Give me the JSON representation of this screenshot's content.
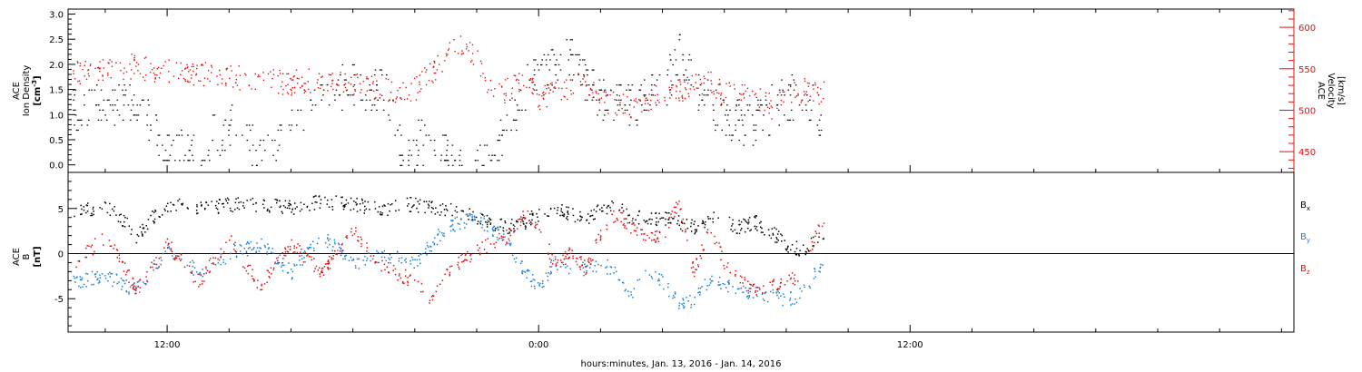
{
  "colors": {
    "black": "#000000",
    "red": "#e01010",
    "blue": "#1a7fd4"
  },
  "xaxis": {
    "label": "hours:minutes, Jan. 13, 2016 - Jan. 14, 2016",
    "range_hours": [
      -15.2,
      24.4
    ],
    "tick_labels": [
      {
        "hour": -12,
        "label": "12:00"
      },
      {
        "hour": 0,
        "label": "0:00"
      },
      {
        "hour": 12,
        "label": "12:00"
      }
    ],
    "minor_tick_hours": [
      -14,
      -10,
      -8,
      -6,
      -4,
      -2,
      2,
      4,
      6,
      8,
      10,
      14,
      16,
      18,
      20,
      22,
      24
    ],
    "data_end_hour": 9.2
  },
  "chart_data": [
    {
      "type": "scatter",
      "panel": "ion-density-velocity",
      "left_axis": {
        "label_lines": [
          "ACE",
          "Ion Density",
          "[cm"
        ],
        "unit_suffix": "-3",
        "unit_close": "]",
        "ylim": [
          -0.15,
          3.1
        ],
        "ticks": [
          "0.0",
          "0.5",
          "1.0",
          "1.5",
          "2.0",
          "2.5",
          "3.0"
        ],
        "color": "#000000"
      },
      "right_axis": {
        "label_lines": [
          "ACE",
          "Velocity",
          "[km/s]"
        ],
        "ylim": [
          425,
          622
        ],
        "ticks": [
          "450",
          "500",
          "550",
          "600"
        ],
        "color": "#e01010"
      },
      "series": [
        {
          "color": "#000000",
          "points": [
            [
              -15.0,
              1.1
            ],
            [
              -14.0,
              1.2
            ],
            [
              -13.0,
              1.4
            ],
            [
              -12.5,
              0.8
            ],
            [
              -12.0,
              0.2
            ],
            [
              -11.0,
              0.3
            ],
            [
              -10.0,
              0.8
            ],
            [
              -9.5,
              0.5
            ],
            [
              -8.9,
              0.15
            ],
            [
              -8.0,
              1.0
            ],
            [
              -7.0,
              1.4
            ],
            [
              -6.0,
              1.6
            ],
            [
              -5.0,
              1.5
            ],
            [
              -4.4,
              0.2
            ],
            [
              -3.5,
              0.6
            ],
            [
              -3.0,
              0.2
            ],
            [
              -2.0,
              0.1
            ],
            [
              -1.5,
              0.1
            ],
            [
              -0.5,
              1.5
            ],
            [
              0.0,
              1.8
            ],
            [
              0.5,
              2.0
            ],
            [
              1.0,
              2.2
            ],
            [
              1.5,
              1.7
            ],
            [
              2.0,
              1.3
            ],
            [
              3.0,
              1.2
            ],
            [
              4.0,
              1.5
            ],
            [
              4.5,
              2.2
            ],
            [
              5.0,
              1.6
            ],
            [
              5.6,
              1.2
            ],
            [
              6.0,
              1.0
            ],
            [
              6.8,
              0.8
            ],
            [
              7.5,
              1.1
            ],
            [
              8.0,
              1.3
            ],
            [
              8.5,
              1.4
            ],
            [
              9.0,
              1.0
            ]
          ]
        },
        {
          "color": "#e01010",
          "points": [
            [
              -15.0,
              545
            ],
            [
              -14.0,
              550
            ],
            [
              -13.0,
              554
            ],
            [
              -12.3,
              548
            ],
            [
              -11.0,
              545
            ],
            [
              -10.0,
              542
            ],
            [
              -9.0,
              536
            ],
            [
              -8.0,
              534
            ],
            [
              -7.0,
              537
            ],
            [
              -6.0,
              533
            ],
            [
              -5.0,
              524
            ],
            [
              -4.0,
              525
            ],
            [
              -3.0,
              565
            ],
            [
              -2.5,
              580
            ],
            [
              -2.0,
              560
            ],
            [
              -1.5,
              520
            ],
            [
              -1.0,
              525
            ],
            [
              -0.5,
              540
            ],
            [
              0.0,
              515
            ],
            [
              0.5,
              520
            ],
            [
              1.0,
              530
            ],
            [
              1.5,
              535
            ],
            [
              2.0,
              510
            ],
            [
              2.5,
              510
            ],
            [
              3.0,
              505
            ],
            [
              4.0,
              520
            ],
            [
              5.0,
              530
            ],
            [
              5.5,
              535
            ],
            [
              6.0,
              520
            ],
            [
              6.5,
              520
            ],
            [
              7.0,
              515
            ],
            [
              7.5,
              505
            ],
            [
              8.0,
              515
            ],
            [
              8.5,
              525
            ],
            [
              9.0,
              520
            ]
          ]
        }
      ]
    },
    {
      "type": "scatter",
      "panel": "magnetic-field",
      "left_axis": {
        "label_lines": [
          "ACE",
          "B",
          "[nT]"
        ],
        "ylim": [
          -8.7,
          9.0
        ],
        "ticks": [
          "-5",
          "0",
          "5"
        ],
        "color": "#000000"
      },
      "zero_line": true,
      "legend": [
        {
          "label": "B",
          "sub": "x",
          "color": "#000000"
        },
        {
          "label": "B",
          "sub": "y",
          "color": "#1a7fd4"
        },
        {
          "label": "B",
          "sub": "z",
          "color": "#e01010"
        }
      ],
      "series": [
        {
          "name": "Bx",
          "color": "#000000",
          "points": [
            [
              -15.0,
              4.5
            ],
            [
              -14.0,
              5.5
            ],
            [
              -13.5,
              4.0
            ],
            [
              -13.0,
              2.0
            ],
            [
              -12.5,
              4.0
            ],
            [
              -12.0,
              5.5
            ],
            [
              -11.0,
              5.0
            ],
            [
              -10.0,
              5.5
            ],
            [
              -9.0,
              5.5
            ],
            [
              -8.0,
              5.2
            ],
            [
              -7.0,
              5.8
            ],
            [
              -6.0,
              5.5
            ],
            [
              -5.0,
              5.0
            ],
            [
              -4.5,
              5.5
            ],
            [
              -4.0,
              5.5
            ],
            [
              -3.0,
              5.0
            ],
            [
              -2.0,
              4.0
            ],
            [
              -1.0,
              3.0
            ],
            [
              -0.5,
              3.5
            ],
            [
              0.0,
              4.5
            ],
            [
              0.5,
              5.0
            ],
            [
              1.0,
              4.5
            ],
            [
              1.5,
              4.0
            ],
            [
              2.0,
              5.0
            ],
            [
              2.5,
              5.5
            ],
            [
              3.0,
              4.0
            ],
            [
              4.0,
              4.0
            ],
            [
              5.0,
              3.0
            ],
            [
              5.5,
              4.0
            ],
            [
              6.0,
              3.5
            ],
            [
              6.5,
              3.0
            ],
            [
              7.0,
              3.5
            ],
            [
              7.5,
              2.5
            ],
            [
              8.0,
              1.0
            ],
            [
              8.5,
              0.5
            ],
            [
              9.0,
              1.5
            ]
          ]
        },
        {
          "name": "By",
          "color": "#1a7fd4",
          "points": [
            [
              -15.0,
              -3.0
            ],
            [
              -14.0,
              -2.5
            ],
            [
              -13.0,
              -4.0
            ],
            [
              -12.0,
              0.5
            ],
            [
              -11.0,
              -2.0
            ],
            [
              -10.0,
              0.0
            ],
            [
              -9.0,
              1.0
            ],
            [
              -8.0,
              -2.0
            ],
            [
              -7.0,
              2.0
            ],
            [
              -6.0,
              -1.0
            ],
            [
              -5.0,
              0.0
            ],
            [
              -4.0,
              -1.0
            ],
            [
              -3.0,
              3.0
            ],
            [
              -2.0,
              4.0
            ],
            [
              -1.0,
              1.5
            ],
            [
              -0.5,
              -2.0
            ],
            [
              0.0,
              -3.5
            ],
            [
              0.5,
              -1.0
            ],
            [
              1.0,
              -2.0
            ],
            [
              2.0,
              -1.0
            ],
            [
              2.5,
              -2.0
            ],
            [
              3.0,
              -4.5
            ],
            [
              3.5,
              -1.5
            ],
            [
              4.0,
              -3.0
            ],
            [
              4.5,
              -5.5
            ],
            [
              5.0,
              -5.0
            ],
            [
              5.5,
              -3.0
            ],
            [
              6.0,
              -3.5
            ],
            [
              6.5,
              -4.0
            ],
            [
              7.0,
              -4.5
            ],
            [
              7.5,
              -4.5
            ],
            [
              8.0,
              -5.0
            ],
            [
              8.5,
              -4.5
            ],
            [
              9.0,
              -1.5
            ]
          ]
        },
        {
          "name": "Bz",
          "color": "#e01010",
          "points": [
            [
              -15.0,
              -1.0
            ],
            [
              -14.0,
              2.0
            ],
            [
              -13.0,
              -4.0
            ],
            [
              -12.0,
              1.0
            ],
            [
              -11.0,
              -3.0
            ],
            [
              -10.0,
              1.5
            ],
            [
              -9.0,
              -3.5
            ],
            [
              -8.0,
              1.0
            ],
            [
              -7.0,
              -2.0
            ],
            [
              -6.0,
              2.5
            ],
            [
              -5.0,
              -1.5
            ],
            [
              -4.0,
              -3.0
            ],
            [
              -3.5,
              -5.5
            ],
            [
              -3.0,
              -2.0
            ],
            [
              -2.0,
              0.5
            ],
            [
              -1.0,
              2.0
            ],
            [
              -0.5,
              4.5
            ],
            [
              0.0,
              3.0
            ],
            [
              0.5,
              -1.0
            ],
            [
              1.0,
              0.0
            ],
            [
              1.5,
              -1.5
            ],
            [
              2.0,
              2.0
            ],
            [
              2.5,
              4.5
            ],
            [
              3.0,
              3.0
            ],
            [
              3.5,
              2.0
            ],
            [
              4.0,
              2.0
            ],
            [
              4.5,
              5.5
            ],
            [
              5.0,
              -2.0
            ],
            [
              5.5,
              3.0
            ],
            [
              6.0,
              -1.0
            ],
            [
              6.5,
              -3.0
            ],
            [
              7.0,
              -4.0
            ],
            [
              7.5,
              -3.5
            ],
            [
              8.0,
              -3.0
            ],
            [
              8.5,
              -2.5
            ],
            [
              9.0,
              3.0
            ]
          ]
        }
      ]
    }
  ]
}
